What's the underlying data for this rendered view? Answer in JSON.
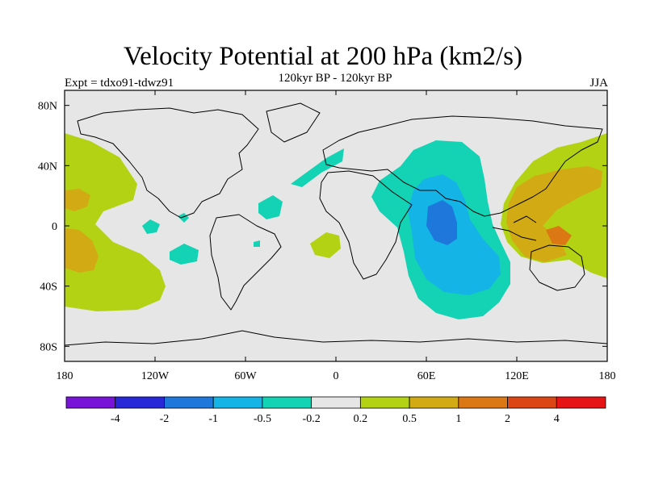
{
  "title": "Velocity Potential at 200 hPa (km2/s)",
  "subtitle": "120kyr BP - 120kyr BP",
  "experiment": "Expt = tdxo91-tdwz91",
  "season": "JJA",
  "chart_data": {
    "type": "map",
    "projection": "cylindrical-equidistant",
    "variable": "velocity potential difference",
    "units": "km2/s",
    "lon_range": [
      -180,
      180
    ],
    "lat_range": [
      -90,
      90
    ],
    "x_ticks": [
      {
        "value": -180,
        "label": "180"
      },
      {
        "value": -120,
        "label": "120W"
      },
      {
        "value": -60,
        "label": "60W"
      },
      {
        "value": 0,
        "label": "0"
      },
      {
        "value": 60,
        "label": "60E"
      },
      {
        "value": 120,
        "label": "120E"
      },
      {
        "value": 180,
        "label": "180"
      }
    ],
    "y_ticks": [
      {
        "value": 80,
        "label": "80N"
      },
      {
        "value": 40,
        "label": "40N"
      },
      {
        "value": 0,
        "label": "0"
      },
      {
        "value": -40,
        "label": "40S"
      },
      {
        "value": -80,
        "label": "80S"
      }
    ],
    "colorbar": {
      "colors": [
        "#7814d8",
        "#2828d8",
        "#1e78dc",
        "#14b4e6",
        "#14d2b4",
        "#e6e6e6",
        "#b4d214",
        "#d2aa14",
        "#dc7814",
        "#dc4614",
        "#e61414"
      ],
      "labels": [
        "-4",
        "-2",
        "-1",
        "-0.5",
        "-0.2",
        "0.2",
        "0.5",
        "1",
        "2",
        "4"
      ]
    },
    "features": [
      {
        "name": "negative center",
        "lon": 65,
        "lat": -10,
        "value_range": "< -1"
      },
      {
        "name": "positive center",
        "lon": 130,
        "lat": 0,
        "value_range": "1 to 2"
      },
      {
        "name": "positive area",
        "lon": -165,
        "lat": -20,
        "value_range": "0.5 to 1"
      }
    ]
  }
}
